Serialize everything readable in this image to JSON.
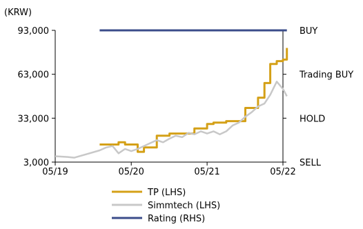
{
  "chart_data": {
    "type": "line",
    "unit_label": "(KRW)",
    "x_ticks": [
      "05/19",
      "05/20",
      "05/21",
      "05/22"
    ],
    "y_left_ticks": [
      "3,000",
      "33,000",
      "63,000",
      "93,000"
    ],
    "y_left_range": [
      3000,
      93000
    ],
    "y_right_ticks": [
      "SELL",
      "HOLD",
      "Trading BUY",
      "BUY"
    ],
    "grid": false,
    "legend_position": "bottom",
    "series": [
      {
        "name": "TP (LHS)",
        "color": "#d4a017",
        "axis": "left",
        "step": true,
        "points": [
          [
            "2019-12-01",
            15000
          ],
          [
            "2020-03-01",
            16500
          ],
          [
            "2020-04-01",
            15000
          ],
          [
            "2020-06-01",
            10000
          ],
          [
            "2020-07-01",
            13000
          ],
          [
            "2020-09-01",
            21000
          ],
          [
            "2020-11-01",
            22500
          ],
          [
            "2021-03-01",
            26000
          ],
          [
            "2021-05-01",
            29000
          ],
          [
            "2021-06-01",
            30000
          ],
          [
            "2021-08-01",
            31000
          ],
          [
            "2021-11-01",
            40000
          ],
          [
            "2022-01-01",
            47000
          ],
          [
            "2022-02-01",
            57000
          ],
          [
            "2022-03-01",
            70000
          ],
          [
            "2022-04-01",
            72000
          ],
          [
            "2022-05-01",
            73000
          ],
          [
            "2022-05-20",
            81000
          ]
        ]
      },
      {
        "name": "Simmtech (LHS)",
        "color": "#c8c8c8",
        "axis": "left",
        "step": false,
        "points": [
          [
            "2019-05-01",
            7000
          ],
          [
            "2019-07-01",
            6500
          ],
          [
            "2019-08-01",
            6000
          ],
          [
            "2019-10-01",
            8500
          ],
          [
            "2019-12-01",
            11000
          ],
          [
            "2020-01-01",
            13000
          ],
          [
            "2020-02-01",
            14000
          ],
          [
            "2020-03-01",
            9000
          ],
          [
            "2020-04-01",
            12000
          ],
          [
            "2020-05-01",
            10500
          ],
          [
            "2020-06-01",
            12000
          ],
          [
            "2020-07-01",
            14000
          ],
          [
            "2020-08-01",
            16000
          ],
          [
            "2020-09-01",
            18000
          ],
          [
            "2020-10-01",
            16500
          ],
          [
            "2020-11-01",
            19000
          ],
          [
            "2020-12-01",
            21000
          ],
          [
            "2021-01-01",
            20000
          ],
          [
            "2021-02-01",
            23000
          ],
          [
            "2021-03-01",
            22000
          ],
          [
            "2021-04-01",
            24000
          ],
          [
            "2021-05-01",
            22500
          ],
          [
            "2021-06-01",
            24000
          ],
          [
            "2021-07-01",
            22000
          ],
          [
            "2021-08-01",
            24000
          ],
          [
            "2021-09-01",
            28000
          ],
          [
            "2021-10-01",
            30000
          ],
          [
            "2021-11-01",
            34000
          ],
          [
            "2021-12-01",
            37000
          ],
          [
            "2022-01-01",
            41000
          ],
          [
            "2022-02-01",
            43000
          ],
          [
            "2022-03-01",
            49000
          ],
          [
            "2022-04-01",
            58000
          ],
          [
            "2022-05-01",
            53000
          ],
          [
            "2022-05-20",
            48000
          ]
        ]
      },
      {
        "name": "Rating (RHS)",
        "color": "#3b4c8a",
        "axis": "right",
        "step": true,
        "points": [
          [
            "2019-12-01",
            "BUY"
          ],
          [
            "2022-05-20",
            "BUY"
          ]
        ]
      }
    ]
  }
}
